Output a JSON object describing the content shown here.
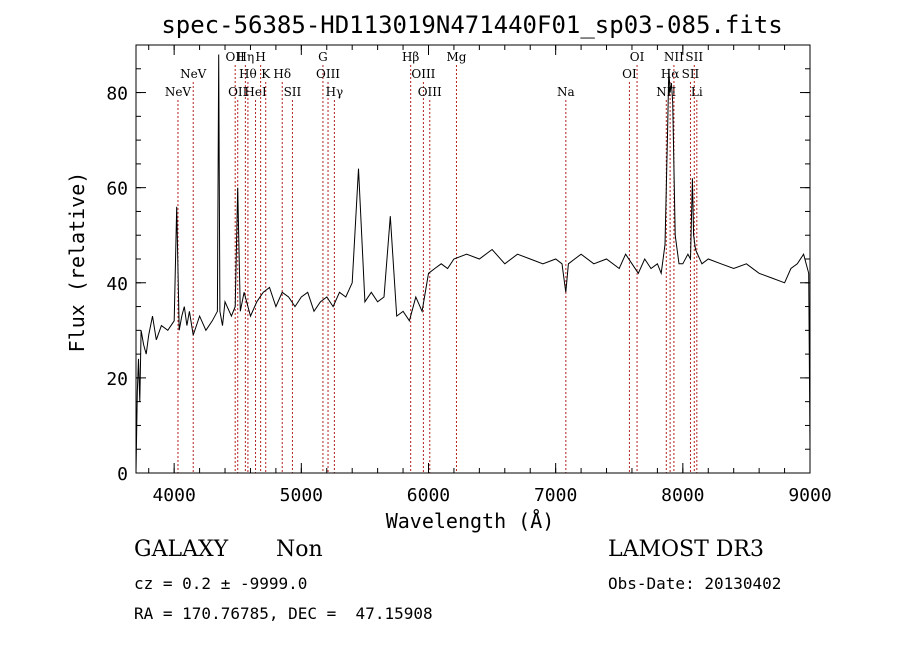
{
  "chart_data": {
    "type": "line",
    "title": "spec-56385-HD113019N471440F01_sp03-085.fits",
    "xlabel": "Wavelength (Å)",
    "ylabel": "Flux (relative)",
    "xlim": [
      3700,
      9000
    ],
    "ylim": [
      0,
      90
    ],
    "xticks": [
      4000,
      5000,
      6000,
      7000,
      8000,
      9000
    ],
    "yticks": [
      0,
      20,
      40,
      60,
      80
    ],
    "grid": false,
    "line_color": "#000000",
    "marker_color": "#b22222",
    "series": [
      {
        "x": [
          3700,
          3710,
          3720,
          3730,
          3740,
          3760,
          3780,
          3800,
          3830,
          3860,
          3900,
          3950,
          4000,
          4020,
          4040,
          4060,
          4080,
          4100,
          4120,
          4150,
          4200,
          4250,
          4300,
          4340,
          4350,
          4360,
          4380,
          4400,
          4450,
          4480,
          4500,
          4520,
          4550,
          4600,
          4650,
          4700,
          4750,
          4800,
          4850,
          4900,
          4950,
          5000,
          5050,
          5100,
          5150,
          5200,
          5250,
          5300,
          5350,
          5400,
          5450,
          5500,
          5550,
          5600,
          5650,
          5700,
          5750,
          5800,
          5850,
          5900,
          5950,
          6000,
          6050,
          6100,
          6150,
          6200,
          6300,
          6400,
          6500,
          6600,
          6700,
          6800,
          6900,
          7000,
          7050,
          7080,
          7100,
          7150,
          7200,
          7300,
          7400,
          7500,
          7550,
          7600,
          7650,
          7700,
          7750,
          7800,
          7830,
          7860,
          7880,
          7890,
          7900,
          7910,
          7920,
          7940,
          7970,
          8000,
          8040,
          8060,
          8075,
          8085,
          8100,
          8150,
          8200,
          8300,
          8400,
          8500,
          8600,
          8700,
          8800,
          8850,
          8900,
          8950,
          8990,
          9000
        ],
        "y": [
          0,
          17,
          24,
          15,
          30,
          27,
          25,
          29,
          33,
          28,
          31,
          30,
          32,
          56,
          30,
          33,
          35,
          31,
          34,
          29,
          33,
          30,
          32,
          34,
          88,
          34,
          31,
          36,
          33,
          35,
          60,
          34,
          38,
          33,
          36,
          38,
          39,
          35,
          38,
          37,
          35,
          37,
          38,
          34,
          36,
          37,
          35,
          38,
          37,
          40,
          64,
          36,
          38,
          36,
          37,
          54,
          33,
          34,
          32,
          37,
          34,
          42,
          43,
          44,
          43,
          45,
          46,
          45,
          47,
          44,
          46,
          45,
          44,
          45,
          44,
          38,
          44,
          45,
          46,
          44,
          45,
          43,
          46,
          44,
          42,
          45,
          43,
          44,
          42,
          48,
          72,
          85,
          80,
          82,
          78,
          50,
          44,
          44,
          46,
          45,
          62,
          50,
          47,
          44,
          45,
          44,
          43,
          44,
          42,
          41,
          40,
          43,
          44,
          46,
          42,
          5
        ]
      }
    ],
    "line_markers": [
      {
        "wl": 4030,
        "top": "NeV",
        "row": 3
      },
      {
        "wl": 4150,
        "top": "NeV",
        "row": 2
      },
      {
        "wl": 4480,
        "top": "OII",
        "row": 1
      },
      {
        "wl": 4500,
        "top": "OII",
        "row": 3
      },
      {
        "wl": 4560,
        "top": "Hη",
        "row": 1
      },
      {
        "wl": 4580,
        "top": "Hθ",
        "row": 2
      },
      {
        "wl": 4640,
        "top": "HeI",
        "row": 3
      },
      {
        "wl": 4680,
        "top": "H",
        "row": 1
      },
      {
        "wl": 4720,
        "top": "K",
        "row": 2
      },
      {
        "wl": 4850,
        "top": "Hδ",
        "row": 2
      },
      {
        "wl": 4930,
        "top": "SII",
        "row": 3
      },
      {
        "wl": 5170,
        "top": "G",
        "row": 1
      },
      {
        "wl": 5210,
        "top": "OIII",
        "row": 2
      },
      {
        "wl": 5260,
        "top": "Hγ",
        "row": 3
      },
      {
        "wl": 5860,
        "top": "Hβ",
        "row": 1
      },
      {
        "wl": 5960,
        "top": "OIII",
        "row": 2
      },
      {
        "wl": 6010,
        "top": "OIII",
        "row": 3
      },
      {
        "wl": 6220,
        "top": "Mg",
        "row": 1
      },
      {
        "wl": 7080,
        "top": "Na",
        "row": 3
      },
      {
        "wl": 7580,
        "top": "OI",
        "row": 2
      },
      {
        "wl": 7640,
        "top": "OI",
        "row": 1
      },
      {
        "wl": 7870,
        "top": "NII",
        "row": 3
      },
      {
        "wl": 7900,
        "top": "Hα",
        "row": 2
      },
      {
        "wl": 7930,
        "top": "NII",
        "row": 1
      },
      {
        "wl": 8060,
        "top": "SII",
        "row": 2
      },
      {
        "wl": 8090,
        "top": "SII",
        "row": 1
      },
      {
        "wl": 8110,
        "top": "Li",
        "row": 3
      }
    ]
  },
  "info": {
    "class": "GALAXY",
    "subclass": "Non",
    "survey": "LAMOST DR3",
    "cz": "cz = 0.2 ± -9999.0",
    "obs_date": "Obs-Date: 20130402",
    "coords": "RA = 170.76785, DEC =  47.15908"
  }
}
